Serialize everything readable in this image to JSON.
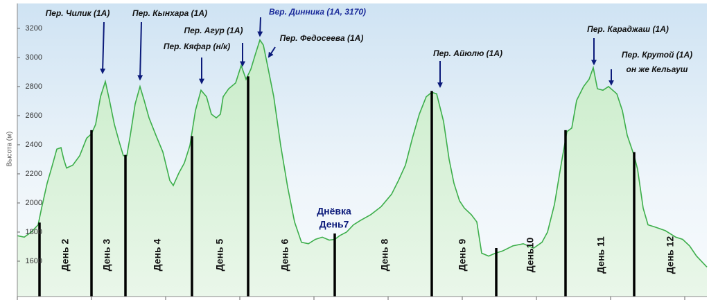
{
  "chart_data": {
    "type": "line",
    "y_label": "Высота (м)",
    "xlim": [
      0,
      995
    ],
    "ylim": [
      1357,
      3371
    ],
    "xticks": [
      0,
      107,
      214,
      321,
      428,
      535,
      642,
      749,
      856,
      963
    ],
    "yticks": [
      1600,
      1800,
      2000,
      2200,
      2400,
      2600,
      2800,
      3000,
      3200
    ],
    "fill": true,
    "series": [
      {
        "color": "#3cae4a",
        "x": [
          0,
          10,
          20,
          30,
          35,
          43,
          50,
          57,
          63,
          67,
          71,
          80,
          90,
          100,
          107,
          113,
          120,
          127,
          133,
          140,
          147,
          153,
          158,
          163,
          170,
          177,
          183,
          190,
          200,
          210,
          220,
          225,
          233,
          241,
          249,
          257,
          265,
          273,
          280,
          287,
          293,
          297,
          305,
          315,
          323,
          330,
          337,
          343,
          350,
          355,
          361,
          370,
          380,
          390,
          400,
          410,
          420,
          430,
          440,
          450,
          458,
          465,
          475,
          485,
          495,
          510,
          525,
          540,
          550,
          560,
          570,
          580,
          590,
          598,
          605,
          615,
          623,
          630,
          638,
          645,
          655,
          663,
          670,
          680,
          690,
          700,
          715,
          730,
          745,
          757,
          765,
          775,
          785,
          793,
          800,
          807,
          817,
          825,
          831,
          837,
          845,
          853,
          865,
          873,
          880,
          890,
          895,
          903,
          910,
          920,
          935,
          950,
          960,
          970,
          980,
          995
        ],
        "values": [
          1775,
          1765,
          1800,
          1850,
          1965,
          2135,
          2250,
          2370,
          2380,
          2300,
          2240,
          2260,
          2325,
          2445,
          2475,
          2540,
          2730,
          2835,
          2705,
          2540,
          2420,
          2325,
          2325,
          2465,
          2680,
          2800,
          2705,
          2585,
          2465,
          2350,
          2155,
          2120,
          2205,
          2275,
          2395,
          2635,
          2775,
          2730,
          2610,
          2585,
          2610,
          2730,
          2785,
          2825,
          2945,
          2850,
          2920,
          3015,
          3120,
          3085,
          2945,
          2730,
          2395,
          2110,
          1870,
          1730,
          1720,
          1750,
          1765,
          1745,
          1750,
          1775,
          1800,
          1850,
          1880,
          1920,
          1975,
          2060,
          2155,
          2260,
          2445,
          2610,
          2730,
          2760,
          2750,
          2560,
          2300,
          2135,
          2015,
          1965,
          1920,
          1870,
          1655,
          1635,
          1655,
          1670,
          1705,
          1720,
          1690,
          1730,
          1800,
          1990,
          2275,
          2490,
          2515,
          2705,
          2800,
          2850,
          2930,
          2785,
          2775,
          2800,
          2750,
          2635,
          2465,
          2325,
          2230,
          1965,
          1850,
          1835,
          1810,
          1765,
          1750,
          1705,
          1635,
          1560
        ]
      }
    ],
    "day_bars": {
      "color": "#000000",
      "x": [
        32,
        107,
        156,
        252,
        333,
        458,
        598,
        691,
        791,
        890
      ],
      "values": [
        1865,
        2500,
        2330,
        2460,
        2870,
        1790,
        2770,
        1690,
        2500,
        2350
      ]
    },
    "day_labels": [
      "День 2",
      "День 3",
      "День 4",
      "День 5",
      "День 6",
      [
        "Днёвка",
        "День7"
      ],
      "День 8",
      "День 9",
      "День10",
      "День 11",
      "День 12"
    ],
    "annotations": [
      {
        "text": "Пер. Чилик (1А)",
        "x": 123,
        "y": 2895
      },
      {
        "text": "Пер. Кынхара (1А)",
        "x": 177,
        "y": 2850
      },
      {
        "text": "Пер. Кяфар (н/к)",
        "x": 266,
        "y": 2825
      },
      {
        "text": "Пер. Агур (1А)",
        "x": 325,
        "y": 2945
      },
      {
        "text": "Вер. Динника (1А, 3170)",
        "x": 350,
        "y": 3150
      },
      {
        "text": "Пер. Федосеева (1А)",
        "x": 363,
        "y": 3005
      },
      {
        "text": "Пер. Айюлю (1А)",
        "x": 610,
        "y": 2800
      },
      {
        "text": "Пер. Караджаш (1А)",
        "x": 832,
        "y": 2955
      },
      {
        "text": [
          "Пер. Крутой (1А)",
          "он же Кельауш"
        ],
        "x": 857,
        "y": 2815
      }
    ]
  }
}
